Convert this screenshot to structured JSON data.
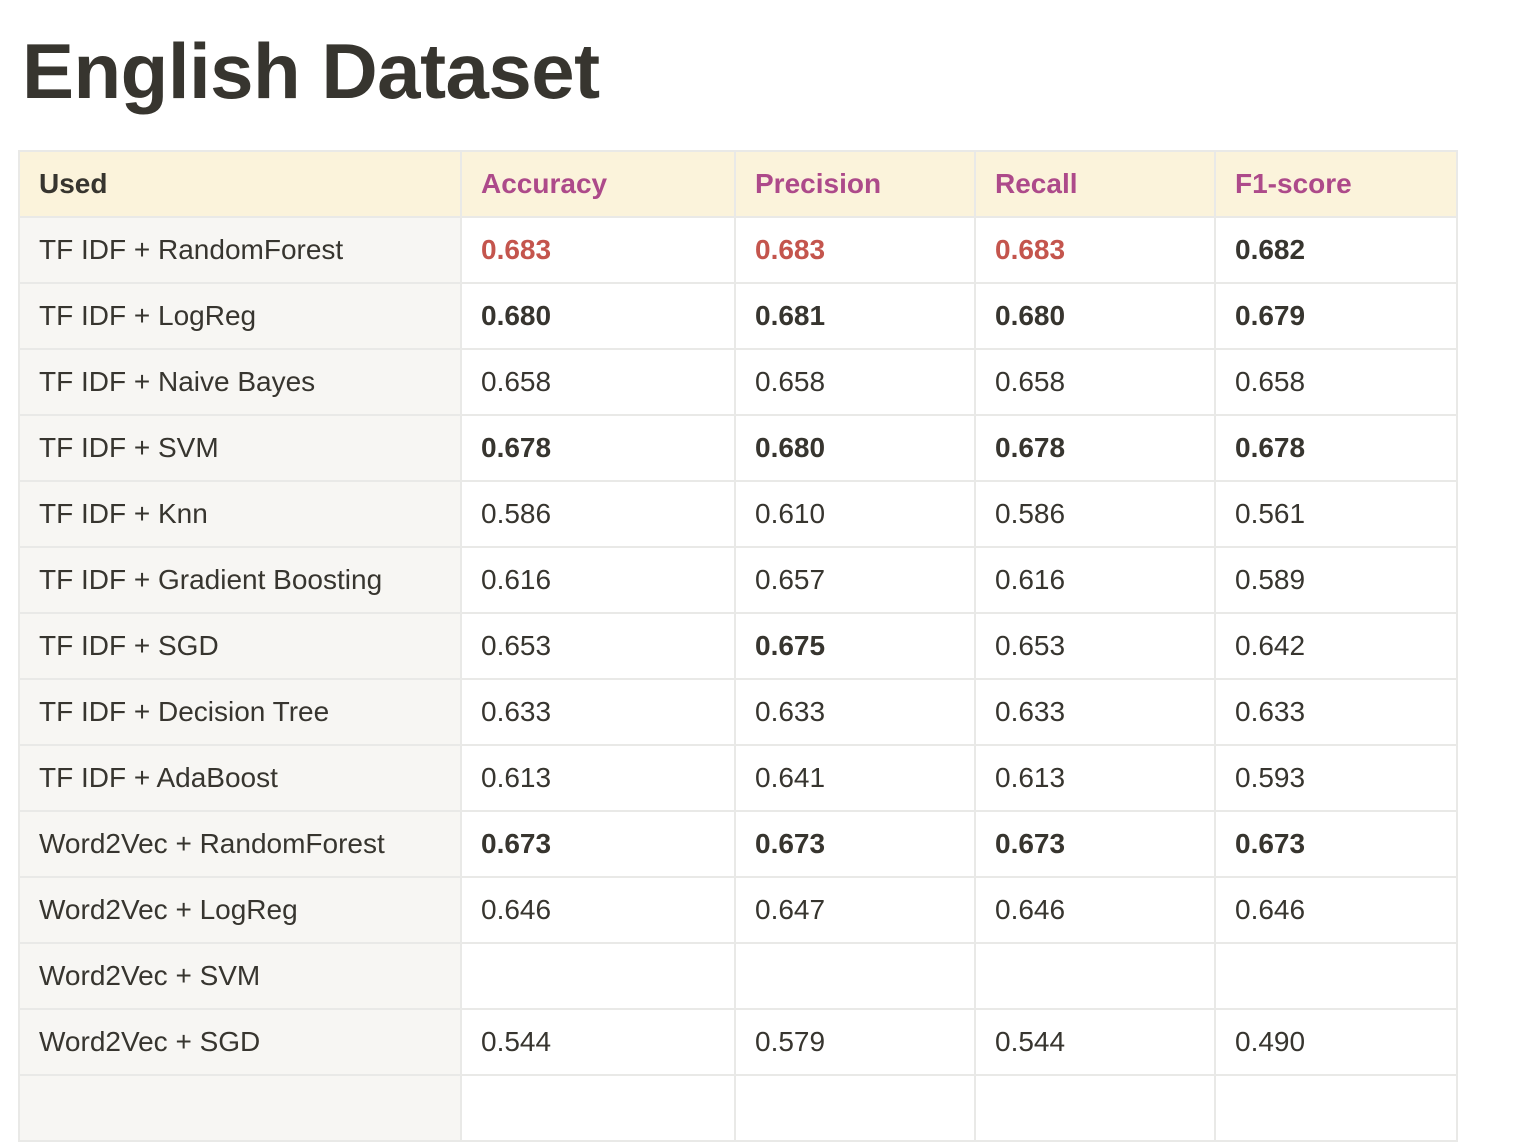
{
  "page": {
    "title": "English Dataset"
  },
  "colors": {
    "header_bg": "#fbf3db",
    "header_metric_text": "#ad4a8a",
    "label_col_bg": "#f7f6f3",
    "highlight_red": "#c4554d",
    "text": "#37352f",
    "border": "#e9e9e7"
  },
  "table": {
    "headers": [
      "Used",
      "Accuracy",
      "Precision",
      "Recall",
      "F1-score"
    ],
    "rows": [
      {
        "label": "TF IDF + RandomForest",
        "values": [
          "0.683",
          "0.683",
          "0.683",
          "0.682"
        ],
        "styles": [
          "red",
          "red",
          "red",
          "bold"
        ]
      },
      {
        "label": "TF IDF + LogReg",
        "values": [
          "0.680",
          "0.681",
          "0.680",
          "0.679"
        ],
        "styles": [
          "bold",
          "bold",
          "bold",
          "bold"
        ]
      },
      {
        "label": "TF IDF + Naive Bayes",
        "values": [
          "0.658",
          "0.658",
          "0.658",
          "0.658"
        ],
        "styles": [
          "",
          "",
          "",
          ""
        ]
      },
      {
        "label": "TF IDF + SVM",
        "values": [
          "0.678",
          "0.680",
          "0.678",
          "0.678"
        ],
        "styles": [
          "bold",
          "bold",
          "bold",
          "bold"
        ]
      },
      {
        "label": "TF IDF + Knn",
        "values": [
          "0.586",
          "0.610",
          "0.586",
          "0.561"
        ],
        "styles": [
          "",
          "",
          "",
          ""
        ]
      },
      {
        "label": "TF IDF + Gradient Boosting",
        "values": [
          "0.616",
          "0.657",
          "0.616",
          "0.589"
        ],
        "styles": [
          "",
          "",
          "",
          ""
        ]
      },
      {
        "label": "TF IDF + SGD",
        "values": [
          "0.653",
          "0.675",
          "0.653",
          "0.642"
        ],
        "styles": [
          "",
          "bold",
          "",
          ""
        ]
      },
      {
        "label": "TF IDF + Decision Tree",
        "values": [
          "0.633",
          "0.633",
          "0.633",
          "0.633"
        ],
        "styles": [
          "",
          "",
          "",
          ""
        ]
      },
      {
        "label": "TF IDF + AdaBoost",
        "values": [
          "0.613",
          "0.641",
          "0.613",
          "0.593"
        ],
        "styles": [
          "",
          "",
          "",
          ""
        ]
      },
      {
        "label": "Word2Vec + RandomForest",
        "values": [
          "0.673",
          "0.673",
          "0.673",
          "0.673"
        ],
        "styles": [
          "bold",
          "bold",
          "bold",
          "bold"
        ]
      },
      {
        "label": "Word2Vec + LogReg",
        "values": [
          "0.646",
          "0.647",
          "0.646",
          "0.646"
        ],
        "styles": [
          "",
          "",
          "",
          ""
        ]
      },
      {
        "label": "Word2Vec + SVM",
        "values": [
          "",
          "",
          "",
          ""
        ],
        "styles": [
          "",
          "",
          "",
          ""
        ]
      },
      {
        "label": "Word2Vec + SGD",
        "values": [
          "0.544",
          "0.579",
          "0.544",
          "0.490"
        ],
        "styles": [
          "",
          "",
          "",
          ""
        ]
      },
      {
        "label": "",
        "values": [
          "",
          "",
          "",
          ""
        ],
        "styles": [
          "",
          "",
          "",
          ""
        ]
      }
    ]
  }
}
